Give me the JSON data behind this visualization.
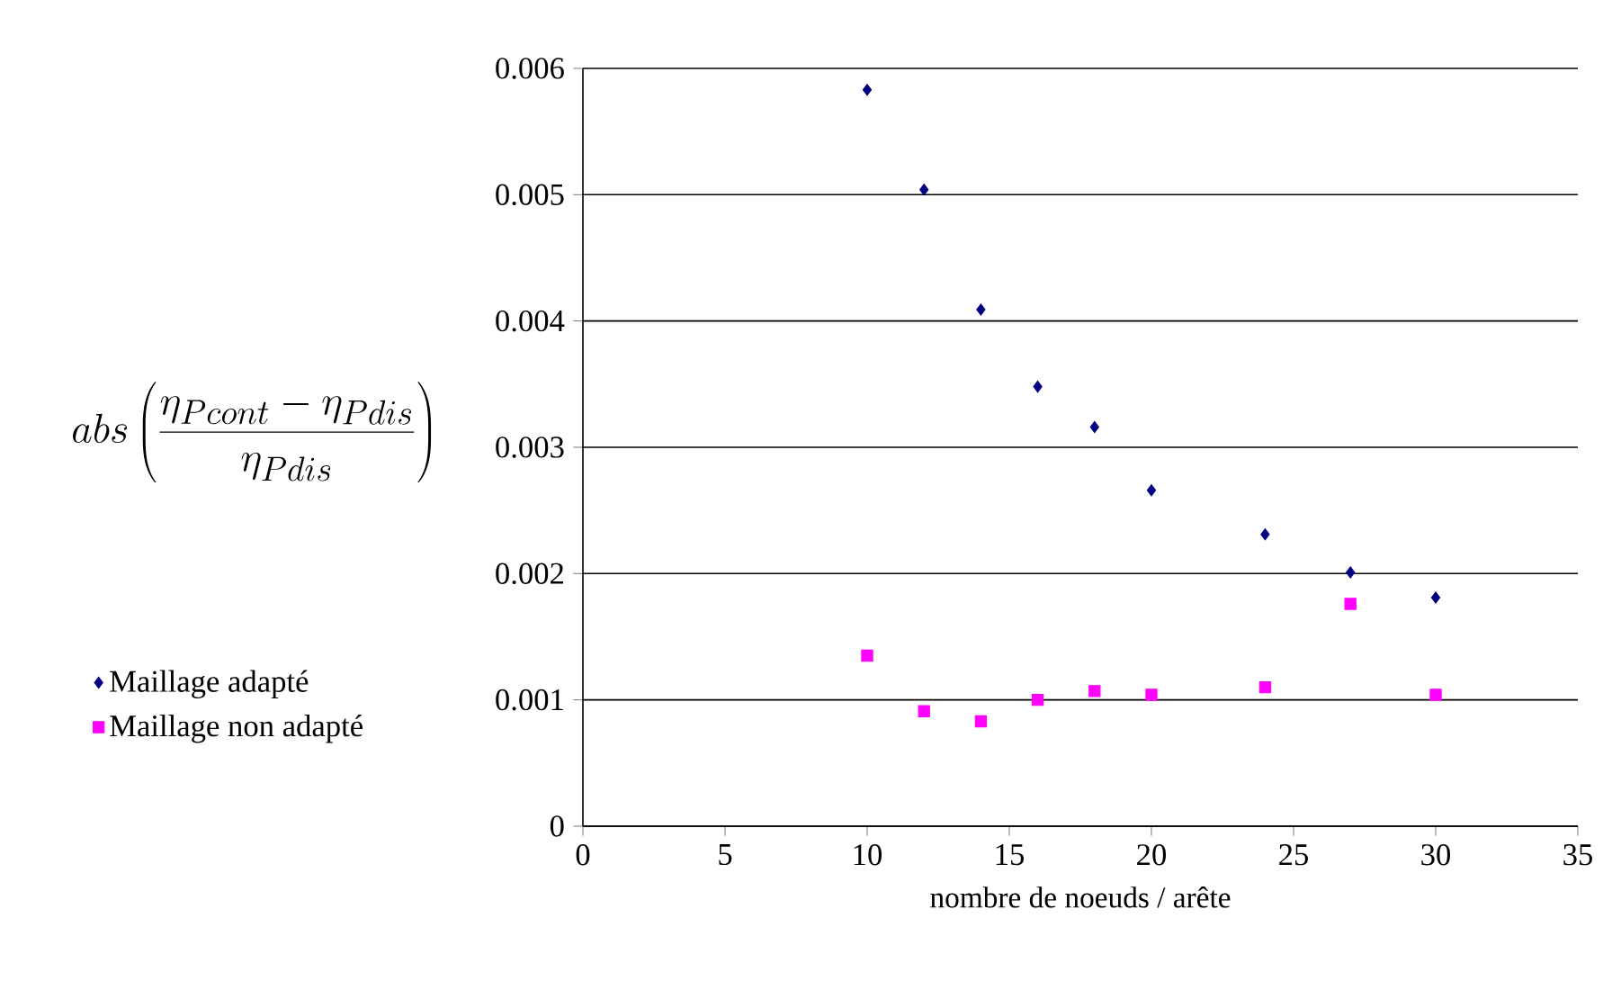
{
  "chart_data": {
    "type": "scatter",
    "xlabel": "nombre de noeuds / arête",
    "ylabel": "abs\\left(\\frac{\\eta_{Pcont}-\\eta_{Pdis}}{\\eta_{Pdis}}\\right)",
    "x": [
      10,
      12,
      14,
      16,
      18,
      20,
      24,
      27,
      30
    ],
    "series": [
      {
        "name": "Maillage adapté",
        "color": "#000080",
        "marker": "diamond",
        "values": [
          0.00583,
          0.00504,
          0.00409,
          0.00348,
          0.00316,
          0.00266,
          0.00231,
          0.00201,
          0.00181
        ]
      },
      {
        "name": "Maillage non adapté",
        "color": "#ff00ff",
        "marker": "square",
        "values": [
          0.00135,
          0.00091,
          0.00083,
          0.001,
          0.00107,
          0.00104,
          0.0011,
          0.00176,
          0.00104
        ]
      }
    ],
    "xlim": [
      0,
      35
    ],
    "xticks": [
      0,
      5,
      10,
      15,
      20,
      25,
      30,
      35
    ],
    "ylim": [
      0,
      0.006
    ],
    "yticks": [
      {
        "value": 0,
        "label": "0"
      },
      0.001,
      0.002,
      0.003,
      0.004,
      0.005,
      0.006
    ],
    "grid": "y",
    "legend": "left"
  }
}
